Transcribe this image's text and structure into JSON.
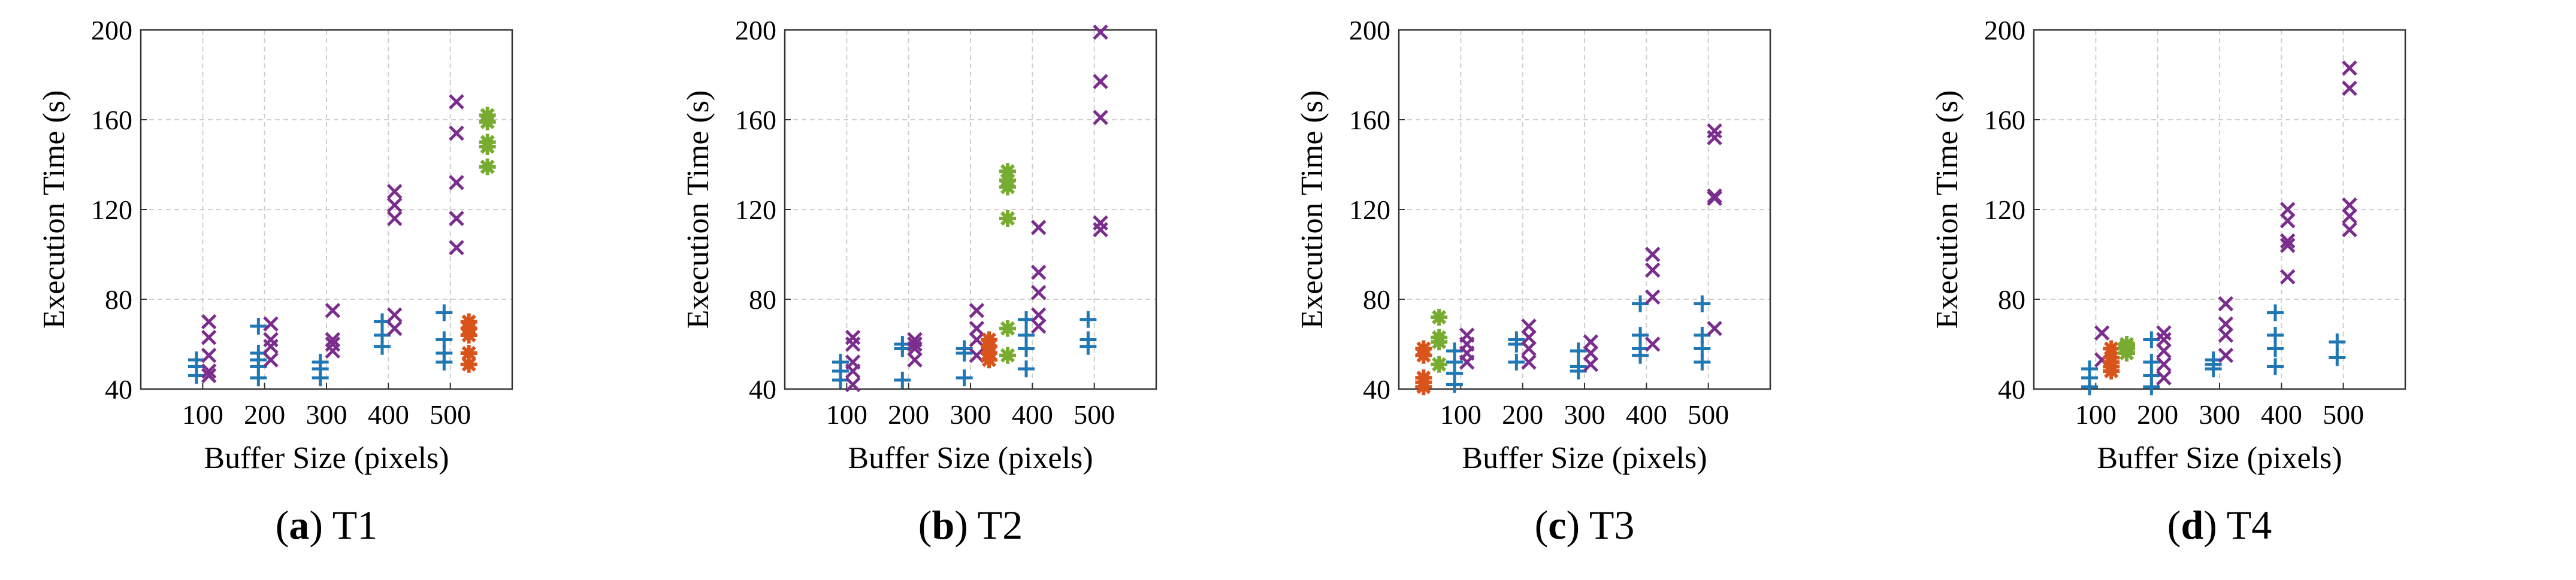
{
  "colors": {
    "plus": "#1f77b4",
    "cross": "#7b2d8e",
    "orange_star": "#d9541a",
    "green_star": "#77ac30",
    "grid": "#cfcfcf",
    "axis": "#333333"
  },
  "chart_data": [
    {
      "type": "scatter",
      "caption_letter": "a",
      "caption_label": "T1",
      "xlabel": "Buffer Size (pixels)",
      "ylabel": "Execution Time (s)",
      "xlim": [
        0,
        600
      ],
      "ylim": [
        40,
        200
      ],
      "xticks": [
        100,
        200,
        300,
        400,
        500
      ],
      "yticks": [
        40,
        80,
        120,
        160,
        200
      ],
      "series": [
        {
          "name": "plus",
          "marker": "plus",
          "points": [
            [
              90,
              53
            ],
            [
              90,
              50
            ],
            [
              90,
              46
            ],
            [
              190,
              68
            ],
            [
              190,
              56
            ],
            [
              190,
              53
            ],
            [
              190,
              50
            ],
            [
              190,
              45
            ],
            [
              290,
              52
            ],
            [
              290,
              49
            ],
            [
              290,
              45
            ],
            [
              390,
              70
            ],
            [
              390,
              64
            ],
            [
              390,
              59
            ],
            [
              490,
              74
            ],
            [
              490,
              62
            ],
            [
              490,
              56
            ],
            [
              490,
              52
            ]
          ]
        },
        {
          "name": "cross",
          "marker": "x",
          "points": [
            [
              110,
              70
            ],
            [
              110,
              63
            ],
            [
              110,
              55
            ],
            [
              110,
              48
            ],
            [
              110,
              46
            ],
            [
              210,
              69
            ],
            [
              210,
              62
            ],
            [
              210,
              59
            ],
            [
              210,
              53
            ],
            [
              310,
              75
            ],
            [
              310,
              62
            ],
            [
              310,
              60
            ],
            [
              310,
              57
            ],
            [
              410,
              128
            ],
            [
              410,
              122
            ],
            [
              410,
              116
            ],
            [
              410,
              73
            ],
            [
              410,
              67
            ],
            [
              510,
              168
            ],
            [
              510,
              154
            ],
            [
              510,
              132
            ],
            [
              510,
              116
            ],
            [
              510,
              103
            ]
          ]
        },
        {
          "name": "orange",
          "marker": "star",
          "points": [
            [
              530,
              70
            ],
            [
              530,
              67
            ],
            [
              530,
              64
            ],
            [
              530,
              56
            ],
            [
              530,
              51
            ]
          ]
        },
        {
          "name": "green",
          "marker": "star",
          "points": [
            [
              560,
              162
            ],
            [
              560,
              159
            ],
            [
              560,
              150
            ],
            [
              560,
              148
            ],
            [
              560,
              139
            ]
          ]
        }
      ]
    },
    {
      "type": "scatter",
      "caption_letter": "b",
      "caption_label": "T2",
      "xlabel": "Buffer Size (pixels)",
      "ylabel": "Execution Time (s)",
      "xlim": [
        0,
        600
      ],
      "ylim": [
        40,
        200
      ],
      "xticks": [
        100,
        200,
        300,
        400,
        500
      ],
      "yticks": [
        40,
        80,
        120,
        160,
        200
      ],
      "series": [
        {
          "name": "plus",
          "marker": "plus",
          "points": [
            [
              90,
              52
            ],
            [
              90,
              48
            ],
            [
              90,
              44
            ],
            [
              190,
              60
            ],
            [
              190,
              58
            ],
            [
              190,
              44
            ],
            [
              290,
              58
            ],
            [
              290,
              56
            ],
            [
              290,
              45
            ],
            [
              390,
              71
            ],
            [
              390,
              64
            ],
            [
              390,
              58
            ],
            [
              390,
              49
            ],
            [
              490,
              71
            ],
            [
              490,
              62
            ],
            [
              490,
              59
            ]
          ]
        },
        {
          "name": "cross",
          "marker": "x",
          "points": [
            [
              110,
              63
            ],
            [
              110,
              60
            ],
            [
              110,
              52
            ],
            [
              110,
              48
            ],
            [
              110,
              42
            ],
            [
              210,
              62
            ],
            [
              210,
              60
            ],
            [
              210,
              58
            ],
            [
              210,
              53
            ],
            [
              310,
              75
            ],
            [
              310,
              67
            ],
            [
              310,
              62
            ],
            [
              310,
              55
            ],
            [
              410,
              112
            ],
            [
              410,
              92
            ],
            [
              410,
              83
            ],
            [
              410,
              73
            ],
            [
              410,
              68
            ],
            [
              510,
              199
            ],
            [
              510,
              177
            ],
            [
              510,
              161
            ],
            [
              510,
              114
            ],
            [
              510,
              111
            ]
          ]
        },
        {
          "name": "orange",
          "marker": "star",
          "points": [
            [
              330,
              62
            ],
            [
              330,
              59
            ],
            [
              330,
              56
            ],
            [
              330,
              53
            ]
          ]
        },
        {
          "name": "green",
          "marker": "star",
          "points": [
            [
              360,
              137
            ],
            [
              360,
              133
            ],
            [
              360,
              130
            ],
            [
              360,
              116
            ],
            [
              360,
              67
            ],
            [
              360,
              55
            ]
          ]
        }
      ]
    },
    {
      "type": "scatter",
      "caption_letter": "c",
      "caption_label": "T3",
      "xlabel": "Buffer Size (pixels)",
      "ylabel": "Execution Time (s)",
      "xlim": [
        0,
        600
      ],
      "ylim": [
        40,
        200
      ],
      "xticks": [
        100,
        200,
        300,
        400,
        500
      ],
      "yticks": [
        40,
        80,
        120,
        160,
        200
      ],
      "series": [
        {
          "name": "plus",
          "marker": "plus",
          "points": [
            [
              90,
              57
            ],
            [
              90,
              52
            ],
            [
              90,
              47
            ],
            [
              90,
              42
            ],
            [
              190,
              62
            ],
            [
              190,
              60
            ],
            [
              190,
              52
            ],
            [
              290,
              57
            ],
            [
              290,
              50
            ],
            [
              290,
              48
            ],
            [
              390,
              78
            ],
            [
              390,
              64
            ],
            [
              390,
              58
            ],
            [
              390,
              55
            ],
            [
              490,
              78
            ],
            [
              490,
              64
            ],
            [
              490,
              58
            ],
            [
              490,
              52
            ]
          ]
        },
        {
          "name": "cross",
          "marker": "x",
          "points": [
            [
              110,
              64
            ],
            [
              110,
              60
            ],
            [
              110,
              56
            ],
            [
              110,
              52
            ],
            [
              210,
              68
            ],
            [
              210,
              63
            ],
            [
              210,
              58
            ],
            [
              210,
              52
            ],
            [
              310,
              61
            ],
            [
              310,
              56
            ],
            [
              310,
              51
            ],
            [
              410,
              100
            ],
            [
              410,
              93
            ],
            [
              410,
              81
            ],
            [
              410,
              60
            ],
            [
              510,
              155
            ],
            [
              510,
              152
            ],
            [
              510,
              126
            ],
            [
              510,
              125
            ],
            [
              510,
              67
            ]
          ]
        },
        {
          "name": "orange",
          "marker": "star",
          "points": [
            [
              40,
              58
            ],
            [
              40,
              55
            ],
            [
              40,
              45
            ],
            [
              40,
              43
            ],
            [
              40,
              41
            ]
          ]
        },
        {
          "name": "green",
          "marker": "star",
          "points": [
            [
              65,
              72
            ],
            [
              65,
              63
            ],
            [
              65,
              61
            ],
            [
              65,
              51
            ]
          ]
        }
      ]
    },
    {
      "type": "scatter",
      "caption_letter": "d",
      "caption_label": "T4",
      "xlabel": "Buffer Size (pixels)",
      "ylabel": "Execution Time (s)",
      "xlim": [
        0,
        600
      ],
      "ylim": [
        40,
        200
      ],
      "xticks": [
        100,
        200,
        300,
        400,
        500
      ],
      "yticks": [
        40,
        80,
        120,
        160,
        200
      ],
      "series": [
        {
          "name": "plus",
          "marker": "plus",
          "points": [
            [
              90,
              49
            ],
            [
              90,
              45
            ],
            [
              90,
              41
            ],
            [
              190,
              62
            ],
            [
              190,
              52
            ],
            [
              190,
              46
            ],
            [
              190,
              41
            ],
            [
              290,
              53
            ],
            [
              290,
              51
            ],
            [
              290,
              49
            ],
            [
              390,
              74
            ],
            [
              390,
              64
            ],
            [
              390,
              58
            ],
            [
              390,
              50
            ],
            [
              490,
              61
            ],
            [
              490,
              54
            ]
          ]
        },
        {
          "name": "cross",
          "marker": "x",
          "points": [
            [
              110,
              65
            ],
            [
              110,
              53
            ],
            [
              210,
              65
            ],
            [
              210,
              62
            ],
            [
              210,
              57
            ],
            [
              210,
              51
            ],
            [
              210,
              45
            ],
            [
              310,
              78
            ],
            [
              310,
              69
            ],
            [
              310,
              64
            ],
            [
              310,
              55
            ],
            [
              410,
              120
            ],
            [
              410,
              115
            ],
            [
              410,
              106
            ],
            [
              410,
              104
            ],
            [
              410,
              90
            ],
            [
              510,
              183
            ],
            [
              510,
              174
            ],
            [
              510,
              122
            ],
            [
              510,
              117
            ],
            [
              510,
              111
            ]
          ]
        },
        {
          "name": "orange",
          "marker": "star",
          "points": [
            [
              125,
              58
            ],
            [
              125,
              54
            ],
            [
              125,
              52
            ],
            [
              125,
              50
            ],
            [
              125,
              48
            ]
          ]
        },
        {
          "name": "green",
          "marker": "star",
          "points": [
            [
              150,
              60
            ],
            [
              150,
              59
            ],
            [
              150,
              58
            ],
            [
              150,
              56
            ]
          ]
        }
      ]
    }
  ]
}
